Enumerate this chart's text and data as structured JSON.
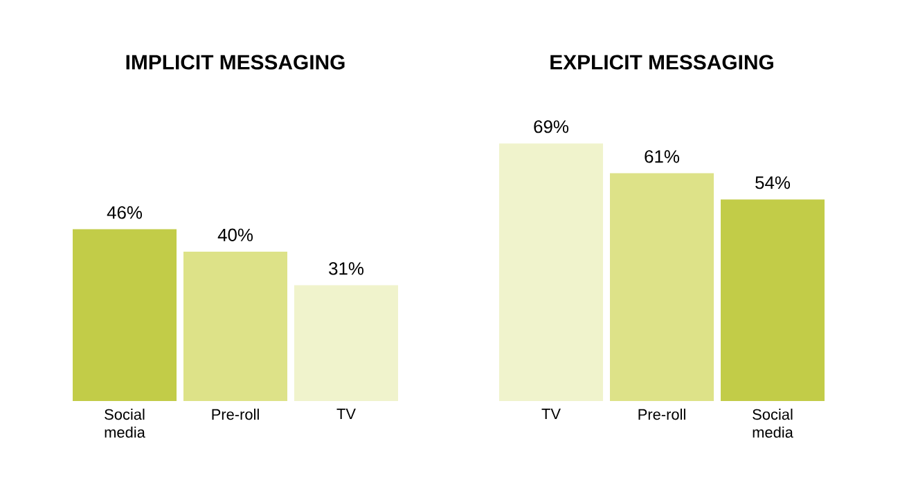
{
  "chart_data": [
    {
      "type": "bar",
      "title": "IMPLICIT MESSAGING",
      "categories": [
        "Social media",
        "Pre-roll",
        "TV"
      ],
      "values": [
        46,
        40,
        31
      ],
      "colors": [
        "#c2cc48",
        "#dde288",
        "#f0f3cc"
      ],
      "value_labels": [
        "46%",
        "40%",
        "31%"
      ],
      "tick_labels": "x"
    },
    {
      "type": "bar",
      "title": "EXPLICIT MESSAGING",
      "categories": [
        "TV",
        "Pre-roll",
        "Social media"
      ],
      "values": [
        69,
        61,
        54
      ],
      "colors": [
        "#f0f3cc",
        "#dde288",
        "#c2cc48"
      ],
      "value_labels": [
        "69%",
        "61%",
        "54%"
      ],
      "tick_labels": "x"
    }
  ]
}
